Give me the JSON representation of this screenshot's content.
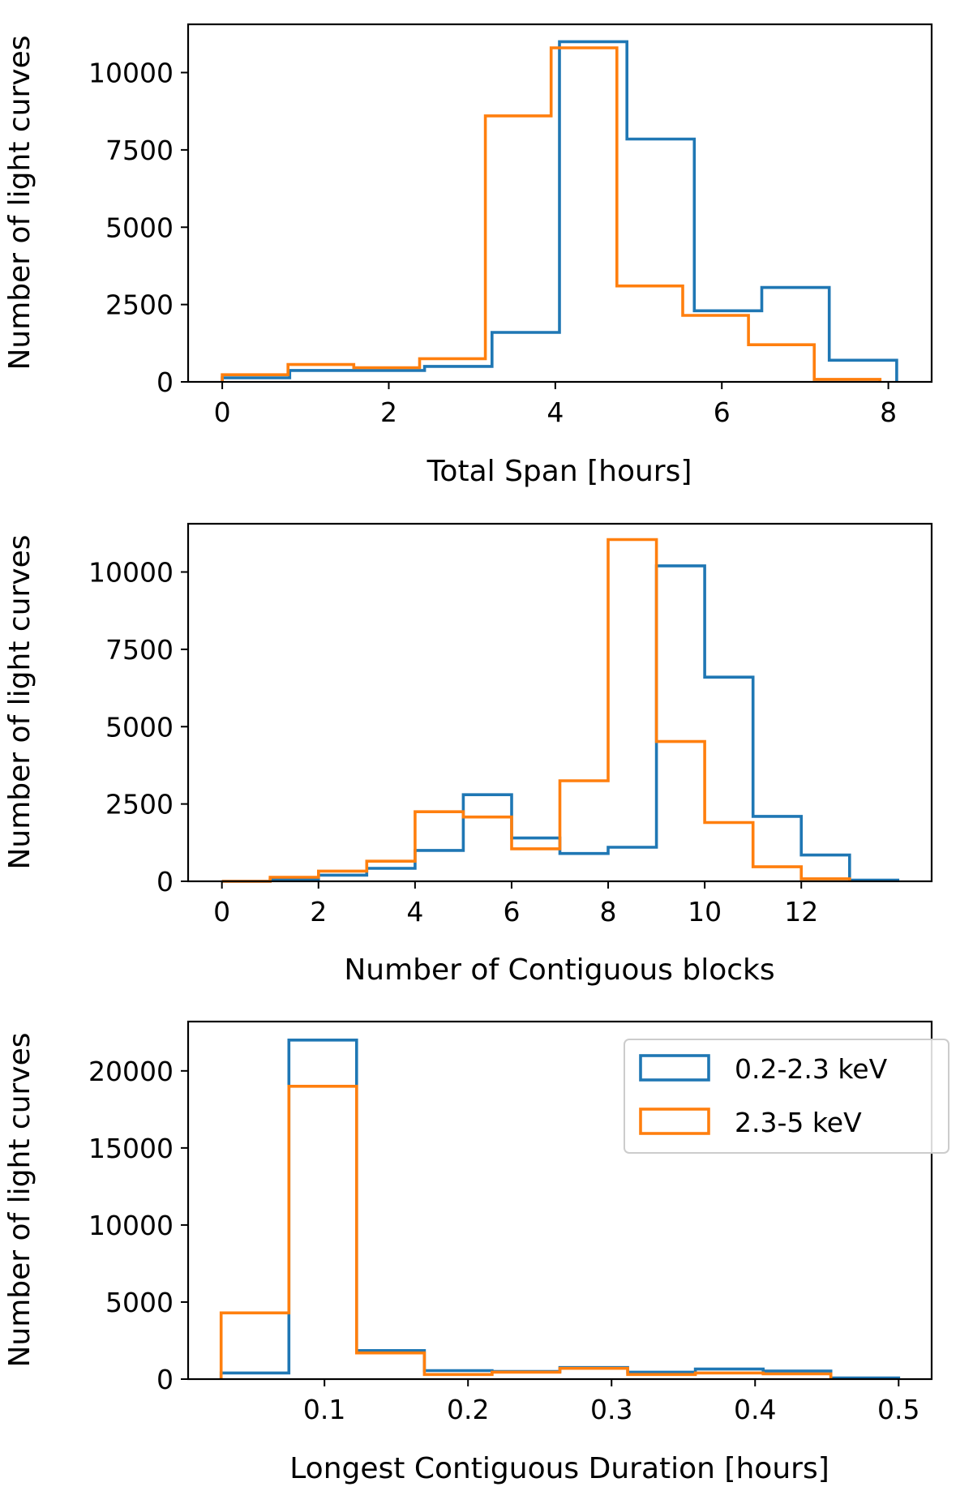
{
  "colors": {
    "blue": "#1f77b4",
    "orange": "#ff7f0e"
  },
  "legend": {
    "items": [
      {
        "label": "0.2-2.3 keV",
        "color": "#1f77b4"
      },
      {
        "label": "2.3-5 keV",
        "color": "#ff7f0e"
      }
    ],
    "location": "upper right of bottom panel"
  },
  "chart_data": [
    {
      "type": "histogram-step",
      "title": "",
      "xlabel": "Total Span [hours]",
      "ylabel": "Number of light curves",
      "xlim": [
        -0.41,
        8.52
      ],
      "ylim": [
        0,
        11560
      ],
      "xticks": [
        0,
        2,
        4,
        6,
        8
      ],
      "xtick_labels": [
        "0",
        "2",
        "4",
        "6",
        "8"
      ],
      "yticks": [
        0,
        2500,
        5000,
        7500,
        10000
      ],
      "ytick_labels": [
        "0",
        "2500",
        "5000",
        "7500",
        "10000"
      ],
      "series": [
        {
          "name": "0.2-2.3 keV",
          "color": "#1f77b4",
          "edges": [
            0,
            0.81,
            1.62,
            2.43,
            3.24,
            4.05,
            4.86,
            5.67,
            6.48,
            7.29,
            8.1
          ],
          "values": [
            130,
            370,
            370,
            500,
            1600,
            11000,
            7850,
            2300,
            3050,
            700
          ]
        },
        {
          "name": "2.3-5 keV",
          "color": "#ff7f0e",
          "edges": [
            0,
            0.79,
            1.58,
            2.37,
            3.16,
            3.95,
            4.74,
            5.53,
            6.32,
            7.11,
            7.9
          ],
          "values": [
            230,
            560,
            460,
            750,
            8600,
            10800,
            3100,
            2150,
            1200,
            80
          ]
        }
      ]
    },
    {
      "type": "histogram-step",
      "title": "",
      "xlabel": "Number of Contiguous blocks",
      "ylabel": "Number of light curves",
      "xlim": [
        -0.7,
        14.7
      ],
      "ylim": [
        0,
        11560
      ],
      "xticks": [
        0,
        2,
        4,
        6,
        8,
        10,
        12
      ],
      "xtick_labels": [
        "0",
        "2",
        "4",
        "6",
        "8",
        "10",
        "12"
      ],
      "yticks": [
        0,
        2500,
        5000,
        7500,
        10000
      ],
      "ytick_labels": [
        "0",
        "2500",
        "5000",
        "7500",
        "10000"
      ],
      "series": [
        {
          "name": "0.2-2.3 keV",
          "color": "#1f77b4",
          "edges": [
            0,
            1,
            2,
            3,
            4,
            5,
            6,
            7,
            8,
            9,
            10,
            11,
            12,
            13,
            14
          ],
          "values": [
            0,
            50,
            200,
            420,
            1000,
            2800,
            1400,
            900,
            1100,
            10200,
            6600,
            2100,
            850,
            40
          ]
        },
        {
          "name": "2.3-5 keV",
          "color": "#ff7f0e",
          "edges": [
            0,
            1,
            2,
            3,
            4,
            5,
            6,
            7,
            8,
            9,
            10,
            11,
            12,
            13
          ],
          "values": [
            0,
            130,
            330,
            650,
            2250,
            2080,
            1050,
            3250,
            11050,
            4520,
            1900,
            470,
            80
          ]
        }
      ]
    },
    {
      "type": "histogram-step",
      "title": "",
      "xlabel": "Longest Contiguous Duration [hours]",
      "ylabel": "Number of light curves",
      "xlim": [
        0.005,
        0.523
      ],
      "ylim": [
        0,
        23200
      ],
      "xticks": [
        0.1,
        0.2,
        0.3,
        0.4,
        0.5
      ],
      "xtick_labels": [
        "0.1",
        "0.2",
        "0.3",
        "0.4",
        "0.5"
      ],
      "yticks": [
        0,
        5000,
        10000,
        15000,
        20000
      ],
      "ytick_labels": [
        "0",
        "5000",
        "10000",
        "15000",
        "20000"
      ],
      "series": [
        {
          "name": "0.2-2.3 keV",
          "color": "#1f77b4",
          "edges": [
            0.028,
            0.0752,
            0.1224,
            0.1696,
            0.2168,
            0.264,
            0.3112,
            0.3584,
            0.4056,
            0.4528,
            0.5
          ],
          "values": [
            400,
            22000,
            1850,
            550,
            500,
            750,
            450,
            650,
            520,
            80
          ]
        },
        {
          "name": "2.3-5 keV",
          "color": "#ff7f0e",
          "edges": [
            0.028,
            0.0752,
            0.1224,
            0.1696,
            0.2168,
            0.264,
            0.3112,
            0.3584,
            0.4056,
            0.4528
          ],
          "values": [
            4300,
            19000,
            1700,
            300,
            450,
            700,
            300,
            400,
            340
          ]
        }
      ]
    }
  ]
}
